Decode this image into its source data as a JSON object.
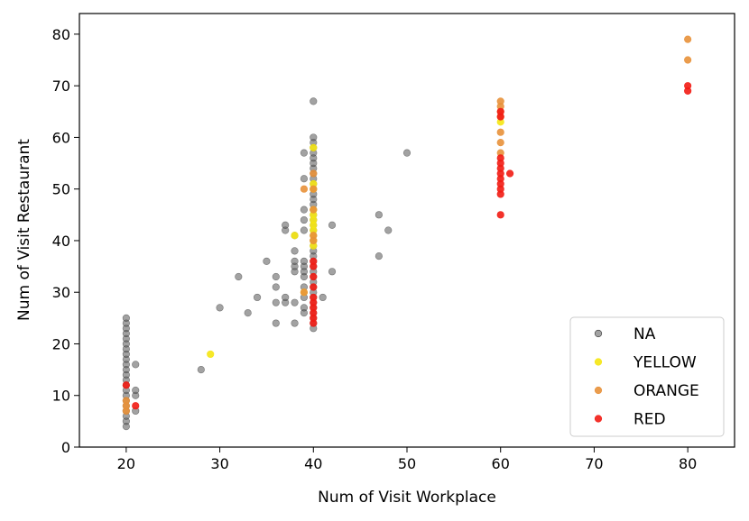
{
  "chart_data": {
    "type": "scatter",
    "title": "",
    "xlabel": "Num of Visit Workplace",
    "ylabel": "Num of Visit Restaurant",
    "xlim": [
      15,
      85
    ],
    "ylim": [
      0,
      84
    ],
    "xticks": [
      20,
      30,
      40,
      50,
      60,
      70,
      80
    ],
    "yticks": [
      0,
      10,
      20,
      30,
      40,
      50,
      60,
      70,
      80
    ],
    "grid": false,
    "legend_position": "bottom-right",
    "series": [
      {
        "name": "NA",
        "color": "#555555",
        "points": [
          [
            20,
            4
          ],
          [
            20,
            5
          ],
          [
            20,
            6
          ],
          [
            20,
            7
          ],
          [
            20,
            8
          ],
          [
            20,
            9
          ],
          [
            20,
            10
          ],
          [
            20,
            11
          ],
          [
            20,
            12
          ],
          [
            20,
            13
          ],
          [
            20,
            14
          ],
          [
            20,
            15
          ],
          [
            20,
            16
          ],
          [
            20,
            17
          ],
          [
            20,
            18
          ],
          [
            20,
            19
          ],
          [
            20,
            20
          ],
          [
            20,
            21
          ],
          [
            20,
            22
          ],
          [
            20,
            23
          ],
          [
            20,
            24
          ],
          [
            20,
            25
          ],
          [
            21,
            7
          ],
          [
            21,
            10
          ],
          [
            21,
            11
          ],
          [
            21,
            16
          ],
          [
            28,
            15
          ],
          [
            30,
            27
          ],
          [
            32,
            33
          ],
          [
            33,
            26
          ],
          [
            34,
            29
          ],
          [
            35,
            36
          ],
          [
            36,
            24
          ],
          [
            36,
            28
          ],
          [
            36,
            31
          ],
          [
            36,
            33
          ],
          [
            37,
            28
          ],
          [
            37,
            29
          ],
          [
            37,
            42
          ],
          [
            37,
            43
          ],
          [
            38,
            24
          ],
          [
            38,
            28
          ],
          [
            38,
            34
          ],
          [
            38,
            35
          ],
          [
            38,
            36
          ],
          [
            38,
            38
          ],
          [
            38,
            41
          ],
          [
            39,
            26
          ],
          [
            39,
            27
          ],
          [
            39,
            29
          ],
          [
            39,
            31
          ],
          [
            39,
            33
          ],
          [
            39,
            34
          ],
          [
            39,
            35
          ],
          [
            39,
            36
          ],
          [
            39,
            42
          ],
          [
            39,
            44
          ],
          [
            39,
            46
          ],
          [
            39,
            52
          ],
          [
            39,
            57
          ],
          [
            40,
            23
          ],
          [
            40,
            24
          ],
          [
            40,
            25
          ],
          [
            40,
            26
          ],
          [
            40,
            27
          ],
          [
            40,
            28
          ],
          [
            40,
            29
          ],
          [
            40,
            30
          ],
          [
            40,
            31
          ],
          [
            40,
            32
          ],
          [
            40,
            33
          ],
          [
            40,
            34
          ],
          [
            40,
            35
          ],
          [
            40,
            36
          ],
          [
            40,
            37
          ],
          [
            40,
            38
          ],
          [
            40,
            39
          ],
          [
            40,
            40
          ],
          [
            40,
            41
          ],
          [
            40,
            42
          ],
          [
            40,
            43
          ],
          [
            40,
            44
          ],
          [
            40,
            45
          ],
          [
            40,
            46
          ],
          [
            40,
            47
          ],
          [
            40,
            48
          ],
          [
            40,
            49
          ],
          [
            40,
            50
          ],
          [
            40,
            51
          ],
          [
            40,
            52
          ],
          [
            40,
            53
          ],
          [
            40,
            54
          ],
          [
            40,
            55
          ],
          [
            40,
            56
          ],
          [
            40,
            57
          ],
          [
            40,
            58
          ],
          [
            40,
            59
          ],
          [
            40,
            60
          ],
          [
            40,
            67
          ],
          [
            41,
            29
          ],
          [
            42,
            34
          ],
          [
            42,
            43
          ],
          [
            47,
            37
          ],
          [
            47,
            45
          ],
          [
            48,
            42
          ],
          [
            50,
            57
          ]
        ]
      },
      {
        "name": "YELLOW",
        "color": "#f5e612",
        "points": [
          [
            29,
            18
          ],
          [
            38,
            41
          ],
          [
            39,
            30
          ],
          [
            40,
            39
          ],
          [
            40,
            40
          ],
          [
            40,
            41
          ],
          [
            40,
            42
          ],
          [
            40,
            43
          ],
          [
            40,
            44
          ],
          [
            40,
            45
          ],
          [
            40,
            46
          ],
          [
            40,
            50
          ],
          [
            40,
            51
          ],
          [
            40,
            58
          ],
          [
            60,
            63
          ]
        ]
      },
      {
        "name": "ORANGE",
        "color": "#e8913a",
        "points": [
          [
            20,
            7
          ],
          [
            20,
            8
          ],
          [
            20,
            9
          ],
          [
            39,
            30
          ],
          [
            39,
            50
          ],
          [
            40,
            40
          ],
          [
            40,
            41
          ],
          [
            40,
            46
          ],
          [
            40,
            50
          ],
          [
            40,
            53
          ],
          [
            60,
            57
          ],
          [
            60,
            59
          ],
          [
            60,
            61
          ],
          [
            60,
            64
          ],
          [
            60,
            65
          ],
          [
            60,
            66
          ],
          [
            60,
            67
          ],
          [
            80,
            75
          ],
          [
            80,
            79
          ]
        ]
      },
      {
        "name": "RED",
        "color": "#f21c14",
        "points": [
          [
            20,
            12
          ],
          [
            21,
            8
          ],
          [
            40,
            24
          ],
          [
            40,
            25
          ],
          [
            40,
            26
          ],
          [
            40,
            27
          ],
          [
            40,
            28
          ],
          [
            40,
            29
          ],
          [
            40,
            31
          ],
          [
            40,
            33
          ],
          [
            40,
            35
          ],
          [
            40,
            36
          ],
          [
            60,
            45
          ],
          [
            60,
            49
          ],
          [
            60,
            50
          ],
          [
            60,
            51
          ],
          [
            60,
            52
          ],
          [
            60,
            53
          ],
          [
            60,
            54
          ],
          [
            60,
            55
          ],
          [
            60,
            56
          ],
          [
            60,
            64
          ],
          [
            60,
            65
          ],
          [
            61,
            53
          ],
          [
            80,
            69
          ],
          [
            80,
            70
          ]
        ]
      }
    ]
  }
}
